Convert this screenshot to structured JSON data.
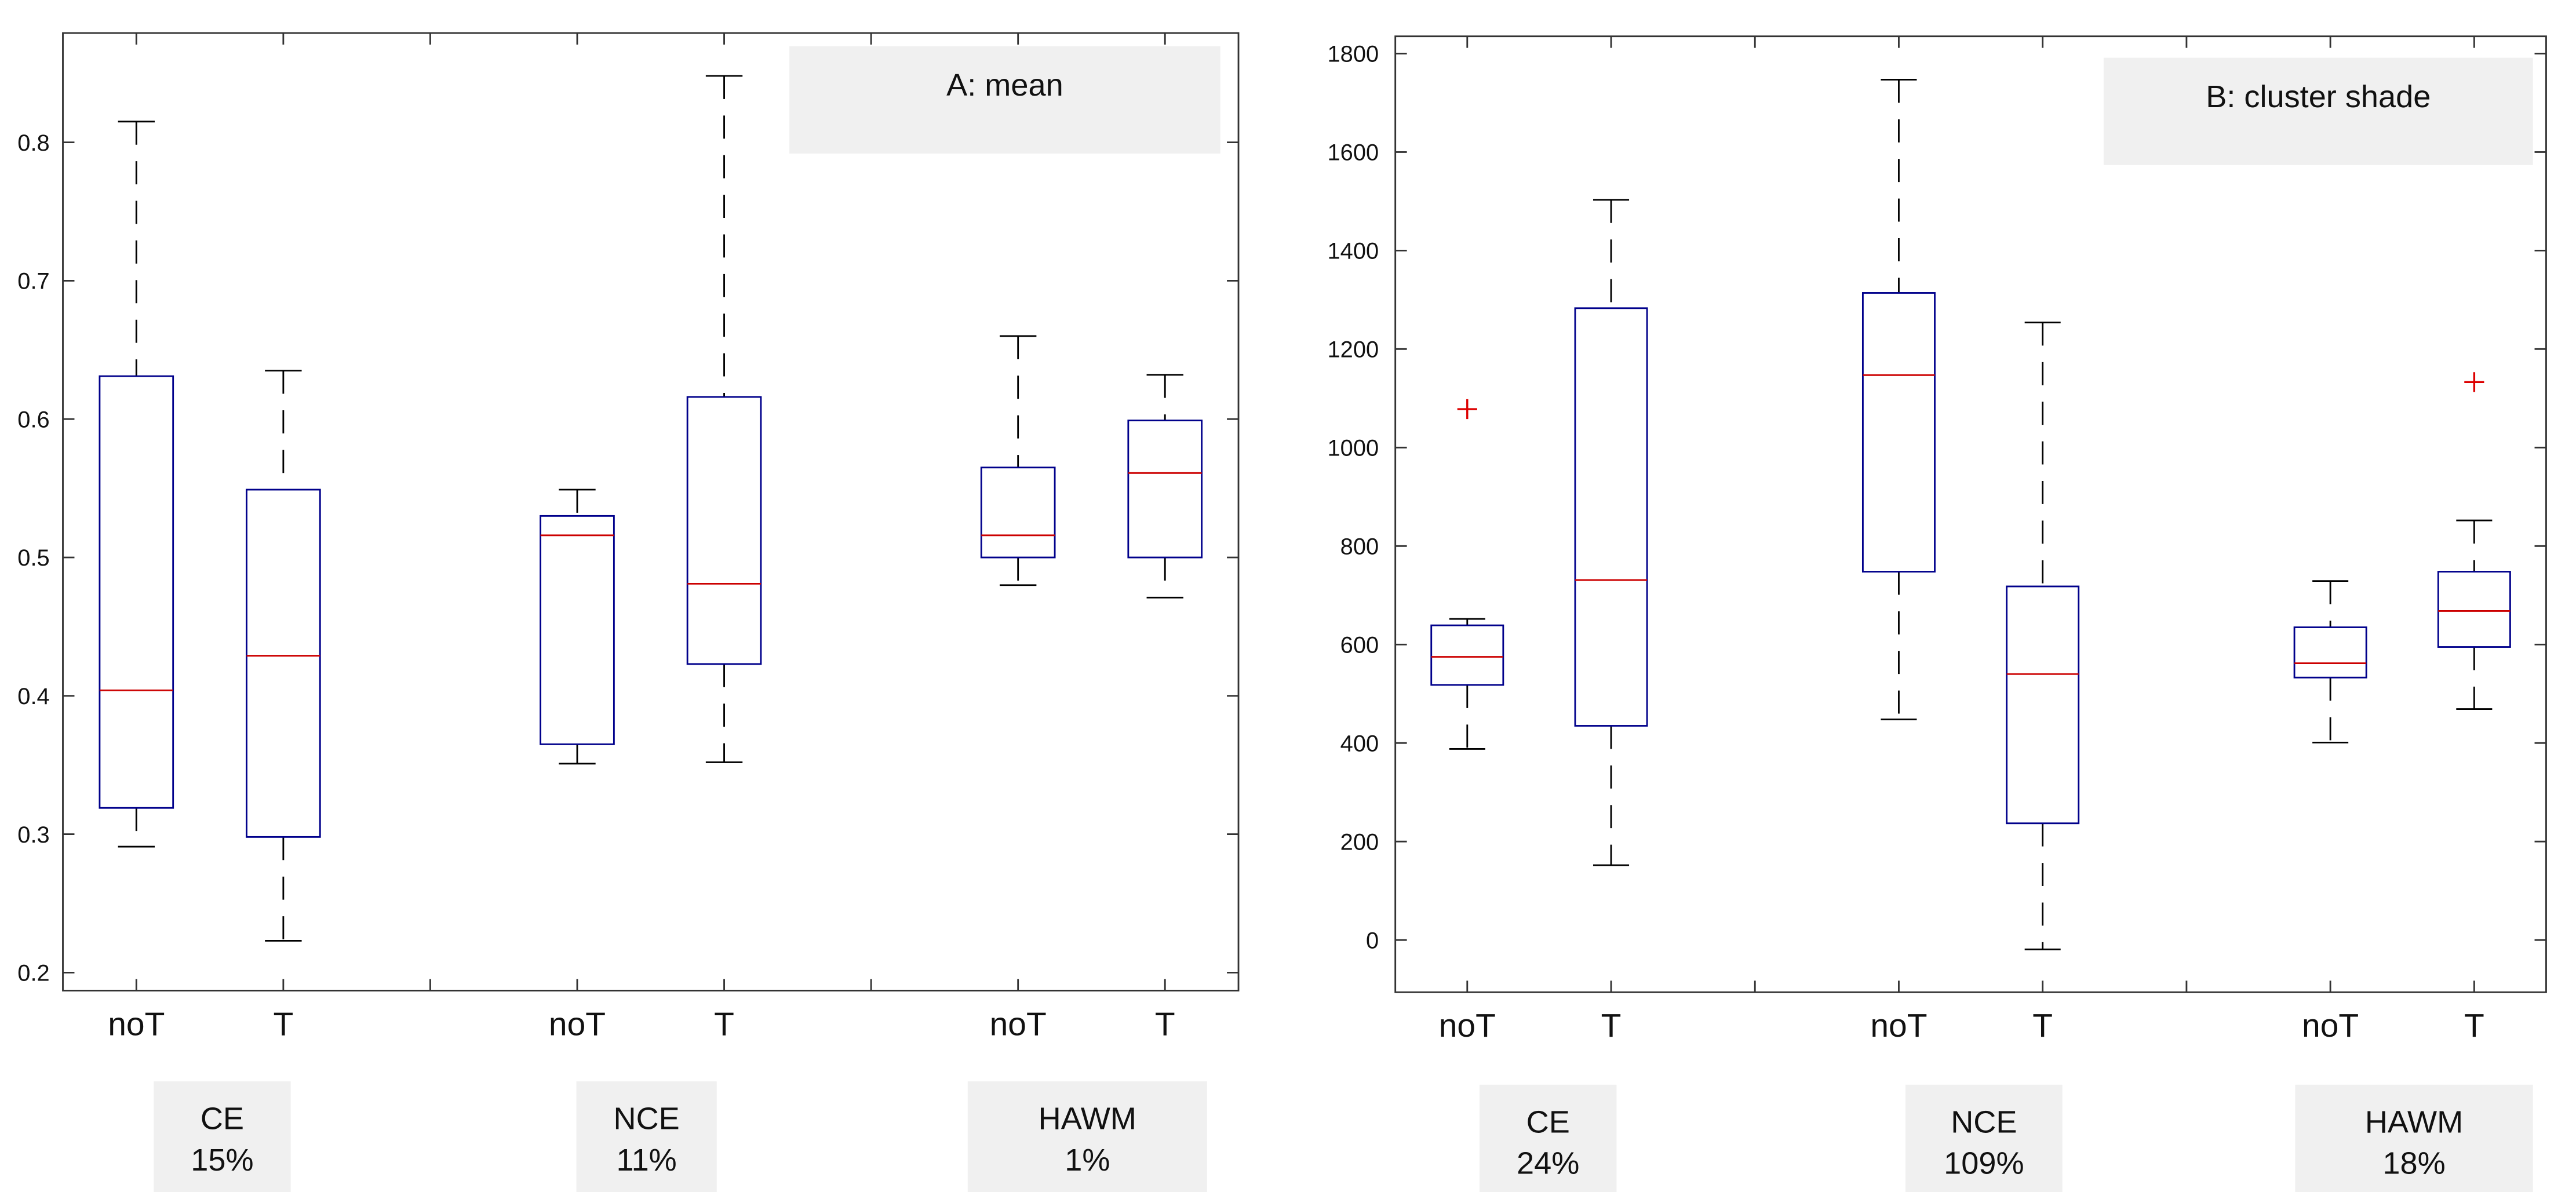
{
  "chart_data": [
    {
      "type": "box",
      "title": "A: mean",
      "categories": [
        "noT",
        "T",
        "noT",
        "T",
        "noT",
        "T"
      ],
      "groups": [
        {
          "name": "CE",
          "percent": "15%"
        },
        {
          "name": "NCE",
          "percent": "11%"
        },
        {
          "name": "HAWM",
          "percent": "1%"
        }
      ],
      "ylim": [
        0.187,
        0.879
      ],
      "yticks": [
        0.2,
        0.3,
        0.4,
        0.5,
        0.6,
        0.7,
        0.8
      ],
      "ytick_labels": [
        "0.2",
        "0.3",
        "0.4",
        "0.5",
        "0.6",
        "0.7",
        "0.8"
      ],
      "boxes": [
        {
          "group": "CE",
          "label": "noT",
          "lo": 0.291,
          "q1": 0.319,
          "median": 0.404,
          "q3": 0.631,
          "hi": 0.815,
          "outliers": []
        },
        {
          "group": "CE",
          "label": "T",
          "lo": 0.223,
          "q1": 0.298,
          "median": 0.429,
          "q3": 0.549,
          "hi": 0.635,
          "outliers": []
        },
        {
          "group": "NCE",
          "label": "noT",
          "lo": 0.351,
          "q1": 0.365,
          "median": 0.516,
          "q3": 0.53,
          "hi": 0.549,
          "outliers": []
        },
        {
          "group": "NCE",
          "label": "T",
          "lo": 0.352,
          "q1": 0.423,
          "median": 0.481,
          "q3": 0.616,
          "hi": 0.848,
          "outliers": []
        },
        {
          "group": "HAWM",
          "label": "noT",
          "lo": 0.48,
          "q1": 0.5,
          "median": 0.516,
          "q3": 0.565,
          "hi": 0.66,
          "outliers": []
        },
        {
          "group": "HAWM",
          "label": "T",
          "lo": 0.471,
          "q1": 0.5,
          "median": 0.561,
          "q3": 0.599,
          "hi": 0.632,
          "outliers": []
        }
      ]
    },
    {
      "type": "box",
      "title": "B: cluster shade",
      "categories": [
        "noT",
        "T",
        "noT",
        "T",
        "noT",
        "T"
      ],
      "groups": [
        {
          "name": "CE",
          "percent": "24%"
        },
        {
          "name": "NCE",
          "percent": "109%"
        },
        {
          "name": "HAWM",
          "percent": "18%"
        }
      ],
      "ylim": [
        -106,
        1835
      ],
      "yticks": [
        0,
        200,
        400,
        600,
        800,
        1000,
        1200,
        1400,
        1600,
        1800
      ],
      "ytick_labels": [
        "0",
        "200",
        "400",
        "600",
        "800",
        "1000",
        "1200",
        "1400",
        "1600",
        "1800"
      ],
      "boxes": [
        {
          "group": "CE",
          "label": "noT",
          "lo": 388,
          "q1": 518,
          "median": 575,
          "q3": 639,
          "hi": 652,
          "outliers": [
            1078
          ]
        },
        {
          "group": "CE",
          "label": "T",
          "lo": 152,
          "q1": 435,
          "median": 731,
          "q3": 1283,
          "hi": 1503,
          "outliers": []
        },
        {
          "group": "NCE",
          "label": "noT",
          "lo": 448,
          "q1": 748,
          "median": 1147,
          "q3": 1314,
          "hi": 1747,
          "outliers": []
        },
        {
          "group": "NCE",
          "label": "T",
          "lo": -19,
          "q1": 237,
          "median": 540,
          "q3": 718,
          "hi": 1254,
          "outliers": []
        },
        {
          "group": "HAWM",
          "label": "noT",
          "lo": 401,
          "q1": 533,
          "median": 562,
          "q3": 635,
          "hi": 729,
          "outliers": []
        },
        {
          "group": "HAWM",
          "label": "T",
          "lo": 469,
          "q1": 595,
          "median": 668,
          "q3": 748,
          "hi": 852,
          "outliers": [
            1133
          ]
        }
      ]
    }
  ],
  "colors": {
    "box": "#00008b",
    "median": "#cc0000",
    "outlier": "#dd0000",
    "whisker": "#000000",
    "label_bg": "#f0f0f0"
  }
}
